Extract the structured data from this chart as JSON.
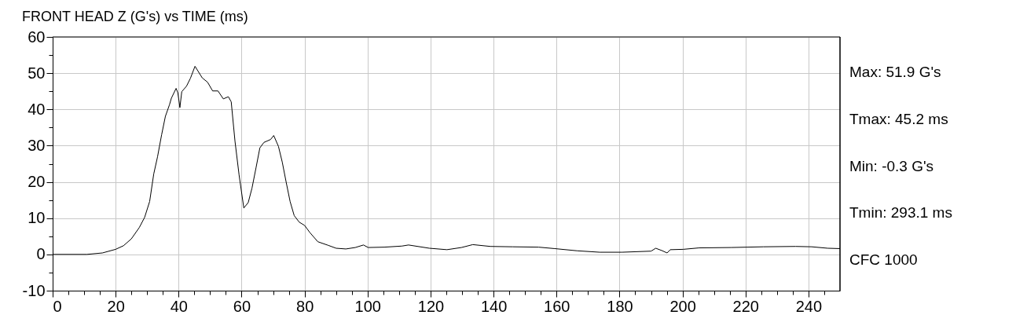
{
  "chart_data": {
    "type": "line",
    "title": "FRONT HEAD Z (G's) vs TIME (ms)",
    "annotations": [
      "Max: 51.9 G's",
      "Tmax: 45.2 ms",
      "Min: -0.3 G's",
      "Tmin: 293.1 ms",
      "CFC 1000"
    ],
    "series": [
      {
        "color": "#000000",
        "x": [
          0,
          10.8,
          15.8,
          20,
          22.5,
          25,
          27.5,
          29.2,
          30.8,
          32.1,
          33.3,
          34.6,
          35.8,
          37.1,
          37.7,
          39.2,
          39.75,
          40.4,
          41,
          42.5,
          43.75,
          45.2,
          47.5,
          49.2,
          50.8,
          52.5,
          54.2,
          55.8,
          56.7,
          57.9,
          59.2,
          60.7,
          62.1,
          63.3,
          64.6,
          65.8,
          67.1,
          69.2,
          70.2,
          71.7,
          72.9,
          74.2,
          75.4,
          76.7,
          78.3,
          80,
          81.7,
          84.2,
          87.5,
          90,
          93.1,
          96.1,
          98.7,
          100.2,
          105.3,
          110.9,
          113,
          119.6,
          125.2,
          129.8,
          133.4,
          139,
          146.1,
          154.3,
          159.4,
          166.5,
          173.7,
          180.8,
          190,
          191.5,
          193.6,
          195.1,
          196.1,
          200.2,
          205.3,
          215.5,
          225.7,
          235.9,
          241,
          246.1,
          250
        ],
        "values": [
          0,
          0,
          0.4,
          1.4,
          2.4,
          4.3,
          7.4,
          10.2,
          14.6,
          22.2,
          26.9,
          33.0,
          38.1,
          41.3,
          43.1,
          45.8,
          44.6,
          40.5,
          44.9,
          46.4,
          48.6,
          51.9,
          48.7,
          47.5,
          45.1,
          45.1,
          42.9,
          43.5,
          42.1,
          31.2,
          21.9,
          12.8,
          14.3,
          18.3,
          24.0,
          29.4,
          30.9,
          31.7,
          32.8,
          29.8,
          25.5,
          19.7,
          14.6,
          10.7,
          8.9,
          8.0,
          6.0,
          3.5,
          2.5,
          1.7,
          1.5,
          1.9,
          2.6,
          1.9,
          2.0,
          2.3,
          2.6,
          1.7,
          1.3,
          1.9,
          2.7,
          2.2,
          2.1,
          2.0,
          1.6,
          1.0,
          0.6,
          0.6,
          0.9,
          1.7,
          1.0,
          0.4,
          1.3,
          1.4,
          1.8,
          1.9,
          2.1,
          2.2,
          2.1,
          1.7,
          1.6
        ]
      }
    ],
    "xlim": [
      0,
      250
    ],
    "xticks": [
      0,
      {
        "value": 5,
        "label": null
      },
      {
        "value": 10,
        "label": null
      },
      {
        "value": 15,
        "label": null
      },
      20,
      {
        "value": 25,
        "label": null
      },
      {
        "value": 30,
        "label": null
      },
      {
        "value": 35,
        "label": null
      },
      40,
      {
        "value": 45,
        "label": null
      },
      {
        "value": 50,
        "label": null
      },
      {
        "value": 55,
        "label": null
      },
      60,
      {
        "value": 65,
        "label": null
      },
      {
        "value": 70,
        "label": null
      },
      {
        "value": 75,
        "label": null
      },
      80,
      {
        "value": 85,
        "label": null
      },
      {
        "value": 90,
        "label": null
      },
      {
        "value": 95,
        "label": null
      },
      100,
      {
        "value": 105,
        "label": null
      },
      {
        "value": 110,
        "label": null
      },
      {
        "value": 115,
        "label": null
      },
      120,
      {
        "value": 125,
        "label": null
      },
      {
        "value": 130,
        "label": null
      },
      {
        "value": 135,
        "label": null
      },
      140,
      {
        "value": 145,
        "label": null
      },
      {
        "value": 150,
        "label": null
      },
      {
        "value": 155,
        "label": null
      },
      160,
      {
        "value": 165,
        "label": null
      },
      {
        "value": 170,
        "label": null
      },
      {
        "value": 175,
        "label": null
      },
      180,
      {
        "value": 185,
        "label": null
      },
      {
        "value": 190,
        "label": null
      },
      {
        "value": 195,
        "label": null
      },
      200,
      {
        "value": 205,
        "label": null
      },
      {
        "value": 210,
        "label": null
      },
      {
        "value": 215,
        "label": null
      },
      220,
      {
        "value": 225,
        "label": null
      },
      {
        "value": 230,
        "label": null
      },
      {
        "value": 235,
        "label": null
      },
      240,
      {
        "value": 245,
        "label": null
      }
    ],
    "ylim": [
      -10,
      60
    ],
    "yticks": [
      -10,
      {
        "value": -5,
        "label": null
      },
      0,
      {
        "value": 5,
        "label": null
      },
      10,
      {
        "value": 15,
        "label": null
      },
      20,
      {
        "value": 25,
        "label": null
      },
      30,
      {
        "value": 35,
        "label": null
      },
      40,
      {
        "value": 45,
        "label": null
      },
      50,
      {
        "value": 55,
        "label": null
      },
      60
    ],
    "grid": true,
    "marker": "none",
    "line_style": "solid"
  }
}
